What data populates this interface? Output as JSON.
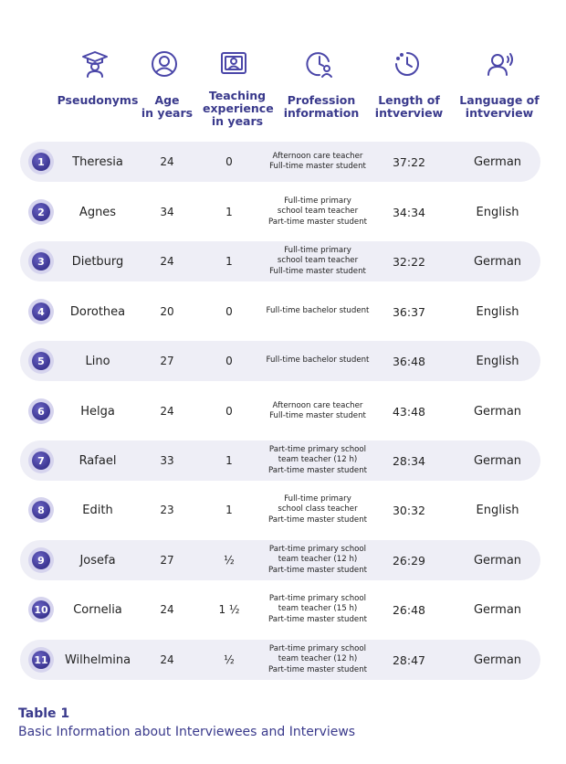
{
  "headers": {
    "pseudonyms": "Pseudonyms",
    "age": "Age\nin years",
    "teaching": "Teaching\nexperience\nin years",
    "profession": "Profession\ninformation",
    "length": "Length of\nintverview",
    "language": "Language of\nintverview"
  },
  "icons": [
    "graduation-cap-icon",
    "user-circle-icon",
    "teacher-board-icon",
    "clock-user-icon",
    "timer-icon",
    "speaking-head-icon"
  ],
  "accent_color": "#3a3a8c",
  "rows": [
    {
      "num": "1",
      "name": "Theresia",
      "age": "24",
      "exp": "0",
      "prof": [
        "Afternoon care teacher",
        "Full-time master student"
      ],
      "length": "37:22",
      "lang": "German"
    },
    {
      "num": "2",
      "name": "Agnes",
      "age": "34",
      "exp": "1",
      "prof": [
        "Full-time primary",
        "school team teacher",
        "Part-time master student"
      ],
      "length": "34:34",
      "lang": "English"
    },
    {
      "num": "3",
      "name": "Dietburg",
      "age": "24",
      "exp": "1",
      "prof": [
        "Full-time primary",
        "school team teacher",
        "Full-time master student"
      ],
      "length": "32:22",
      "lang": "German"
    },
    {
      "num": "4",
      "name": "Dorothea",
      "age": "20",
      "exp": "0",
      "prof": [
        "Full-time bachelor student"
      ],
      "length": "36:37",
      "lang": "English"
    },
    {
      "num": "5",
      "name": "Lino",
      "age": "27",
      "exp": "0",
      "prof": [
        "Full-time bachelor student"
      ],
      "length": "36:48",
      "lang": "English"
    },
    {
      "num": "6",
      "name": "Helga",
      "age": "24",
      "exp": "0",
      "prof": [
        "Afternoon care teacher",
        "Full-time master student"
      ],
      "length": "43:48",
      "lang": "German"
    },
    {
      "num": "7",
      "name": "Rafael",
      "age": "33",
      "exp": "1",
      "prof": [
        "Part-time primary school",
        "team teacher (12 h)",
        "Part-time master student"
      ],
      "length": "28:34",
      "lang": "German"
    },
    {
      "num": "8",
      "name": "Edith",
      "age": "23",
      "exp": "1",
      "prof": [
        "Full-time primary",
        "school class teacher",
        "Part-time master student"
      ],
      "length": "30:32",
      "lang": "English"
    },
    {
      "num": "9",
      "name": "Josefa",
      "age": "27",
      "exp": "½",
      "prof": [
        "Part-time primary school",
        "team teacher (12 h)",
        "Part-time master student"
      ],
      "length": "26:29",
      "lang": "German"
    },
    {
      "num": "10",
      "name": "Cornelia",
      "age": "24",
      "exp": "1 ½",
      "prof": [
        "Part-time primary school",
        "team teacher (15 h)",
        "Part-time master student"
      ],
      "length": "26:48",
      "lang": "German"
    },
    {
      "num": "11",
      "name": "Wilhelmina",
      "age": "24",
      "exp": "½",
      "prof": [
        "Part-time primary school",
        "team teacher (12 h)",
        "Part-time master student"
      ],
      "length": "28:47",
      "lang": "German"
    }
  ],
  "caption": {
    "label": "Table 1",
    "title": "Basic Information about Interviewees and Interviews"
  }
}
